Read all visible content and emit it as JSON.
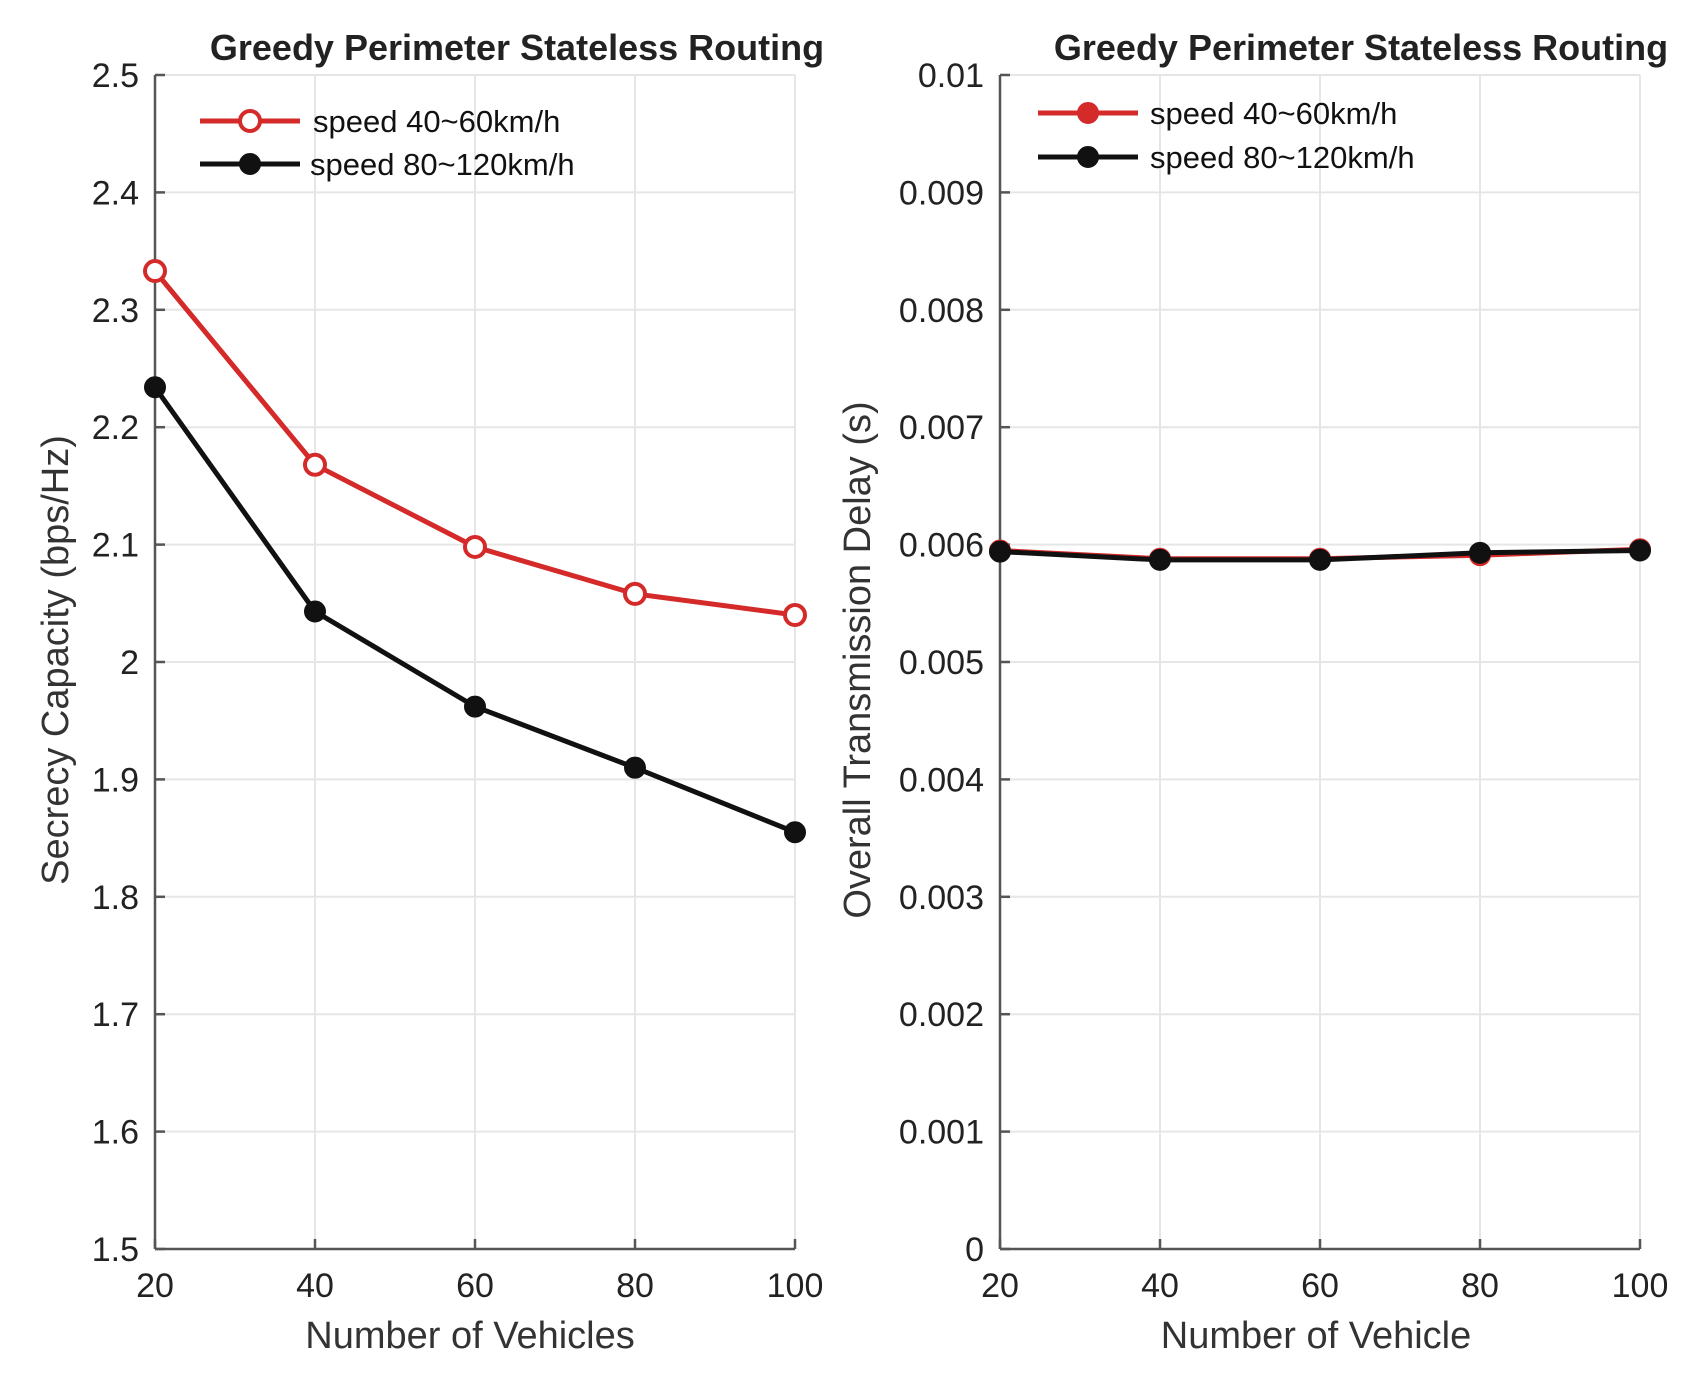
{
  "chart_data": [
    {
      "type": "line",
      "title": "Greedy Perimeter Stateless Routing",
      "xlabel": "Number of Vehicles",
      "ylabel": "Secrecy Capacity (bps/Hz)",
      "x": [
        20,
        40,
        60,
        80,
        100
      ],
      "xlim": [
        20,
        100
      ],
      "ylim": [
        1.5,
        2.5
      ],
      "xticks": [
        "20",
        "40",
        "60",
        "80",
        "100"
      ],
      "yticks": [
        "1.5",
        "1.6",
        "1.7",
        "1.8",
        "1.9",
        "2",
        "2.1",
        "2.2",
        "2.3",
        "2.4",
        "2.5"
      ],
      "grid": true,
      "legend_position": "top-left",
      "series": [
        {
          "name": "speed 40~60km/h",
          "color": "#d42a2a",
          "marker": "open-circle",
          "values": [
            2.333,
            2.168,
            2.098,
            2.058,
            2.04
          ]
        },
        {
          "name": "speed 80~120km/h",
          "color": "#111111",
          "marker": "filled-circle",
          "values": [
            2.234,
            2.043,
            1.962,
            1.91,
            1.855
          ]
        }
      ]
    },
    {
      "type": "line",
      "title": "Greedy Perimeter Stateless Routing",
      "xlabel": "Number of Vehicle",
      "ylabel": "Overall Transmission Delay (s)",
      "x": [
        20,
        40,
        60,
        80,
        100
      ],
      "xlim": [
        20,
        100
      ],
      "ylim": [
        0,
        0.01
      ],
      "xticks": [
        "20",
        "40",
        "60",
        "80",
        "100"
      ],
      "yticks": [
        "0",
        "0.001",
        "0.002",
        "0.003",
        "0.004",
        "0.005",
        "0.006",
        "0.007",
        "0.008",
        "0.009",
        "0.01"
      ],
      "grid": true,
      "legend_position": "top-left",
      "series": [
        {
          "name": "speed 40~60km/h",
          "color": "#d42a2a",
          "marker": "filled-circle",
          "values": [
            0.00595,
            0.00588,
            0.00588,
            0.00591,
            0.00596
          ]
        },
        {
          "name": "speed 80~120km/h",
          "color": "#111111",
          "marker": "filled-circle",
          "values": [
            0.00594,
            0.00587,
            0.00587,
            0.00593,
            0.00595
          ]
        }
      ]
    }
  ]
}
